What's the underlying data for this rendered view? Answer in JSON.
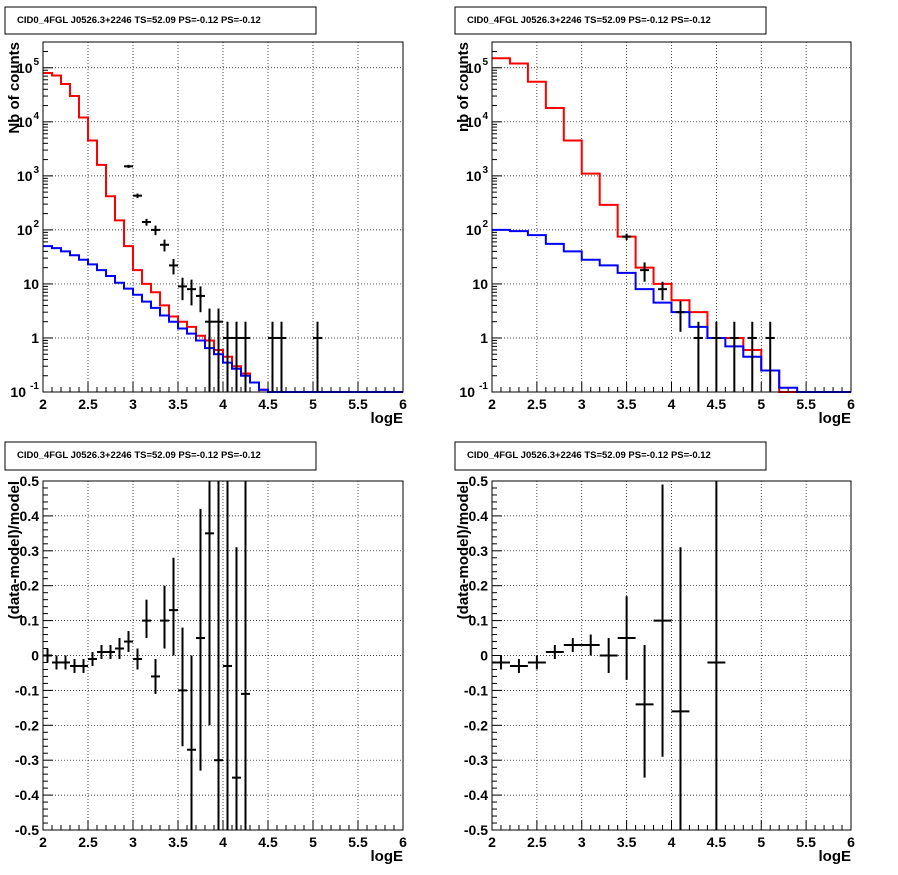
{
  "chart_data": [
    {
      "type": "line",
      "title": "CID0_4FGL J0526.3+2246 TS=52.09 PS=-0.12 PS=-0.12",
      "xlabel": "logE",
      "ylabel": "Nb of counts",
      "xlim": [
        2,
        6
      ],
      "ylim": [
        0.1,
        300000
      ],
      "yscale": "log",
      "grid": true,
      "x_ticks": [
        "2",
        "2.5",
        "3",
        "3.5",
        "4",
        "4.5",
        "5",
        "5.5",
        "6"
      ],
      "y_ticks": [
        {
          "mant": "10",
          "exp": "-1",
          "v": 0.1
        },
        {
          "mant": "1",
          "exp": "",
          "v": 1
        },
        {
          "mant": "10",
          "exp": "",
          "v": 10
        },
        {
          "mant": "10",
          "exp": "2",
          "v": 100
        },
        {
          "mant": "10",
          "exp": "3",
          "v": 1000
        },
        {
          "mant": "10",
          "exp": "4",
          "v": 10000
        },
        {
          "mant": "10",
          "exp": "5",
          "v": 100000
        }
      ],
      "bin_edges": [
        2.0,
        2.1,
        2.2,
        2.3,
        2.4,
        2.5,
        2.6,
        2.7,
        2.8,
        2.9,
        3.0,
        3.1,
        3.2,
        3.3,
        3.4,
        3.5,
        3.6,
        3.7,
        3.8,
        3.9,
        4.0,
        4.1,
        4.2,
        4.3,
        4.4,
        4.5,
        4.6,
        4.7,
        4.8,
        4.9,
        5.0,
        5.1,
        5.2,
        5.3,
        5.4,
        5.5,
        5.6,
        5.7,
        5.8,
        5.9,
        6.0
      ],
      "series": [
        {
          "color": "#ff0000",
          "kind": "step",
          "values": [
            80000,
            72000,
            50000,
            30000,
            12000,
            4500,
            1600,
            420,
            150,
            50,
            18,
            10,
            7,
            4,
            2.5,
            2,
            1.6,
            1.1,
            0.9,
            0.6,
            0.45,
            0.3,
            0.22,
            0.15,
            0.11,
            0.1,
            0.1,
            0.1,
            0.1,
            0.1,
            0.1,
            0.1,
            0.1,
            0.1,
            0.1,
            0.1,
            0.1,
            0.1,
            0.1,
            0.1
          ]
        },
        {
          "color": "#0000ff",
          "kind": "step",
          "values": [
            50,
            46,
            40,
            34,
            28,
            23,
            18,
            14,
            10.5,
            8.2,
            6.3,
            4.7,
            3.6,
            2.6,
            2.0,
            1.5,
            1.2,
            0.9,
            0.65,
            0.5,
            0.35,
            0.27,
            0.2,
            0.15,
            0.11,
            0.1,
            0.1,
            0.1,
            0.1,
            0.1,
            0.1,
            0.1,
            0.1,
            0.1,
            0.1,
            0.1,
            0.1,
            0.1,
            0.1,
            0.1
          ]
        },
        {
          "color": "#000000",
          "kind": "points",
          "x": [
            2.95,
            3.05,
            3.15,
            3.25,
            3.35,
            3.45,
            3.55,
            3.65,
            3.75,
            3.85,
            3.95,
            4.05,
            4.15,
            4.25,
            4.55,
            4.65,
            5.05
          ],
          "y": [
            1500,
            430,
            140,
            100,
            53,
            22,
            9,
            8,
            6,
            2,
            2,
            1,
            1,
            1,
            1,
            1,
            1
          ],
          "ylo": [
            1400,
            390,
            120,
            80,
            40,
            15,
            5,
            4,
            3,
            0.1,
            0.1,
            0.1,
            0.1,
            0.1,
            0.1,
            0.1,
            0.1
          ],
          "yhi": [
            1600,
            470,
            160,
            120,
            66,
            29,
            13,
            12,
            9,
            3.5,
            3.5,
            2,
            2,
            2,
            2,
            2,
            2
          ]
        }
      ]
    },
    {
      "type": "line",
      "title": "CID0_4FGL J0526.3+2246 TS=52.09 PS=-0.12 PS=-0.12",
      "xlabel": "logE",
      "ylabel": "nb of counts",
      "xlim": [
        2,
        6
      ],
      "ylim": [
        0.1,
        300000
      ],
      "yscale": "log",
      "grid": true,
      "x_ticks": [
        "2",
        "2.5",
        "3",
        "3.5",
        "4",
        "4.5",
        "5",
        "5.5",
        "6"
      ],
      "y_ticks": [
        {
          "mant": "10",
          "exp": "-1",
          "v": 0.1
        },
        {
          "mant": "1",
          "exp": "",
          "v": 1
        },
        {
          "mant": "10",
          "exp": "",
          "v": 10
        },
        {
          "mant": "10",
          "exp": "2",
          "v": 100
        },
        {
          "mant": "10",
          "exp": "3",
          "v": 1000
        },
        {
          "mant": "10",
          "exp": "4",
          "v": 10000
        },
        {
          "mant": "10",
          "exp": "5",
          "v": 100000
        }
      ],
      "bin_edges": [
        2.0,
        2.2,
        2.4,
        2.6,
        2.8,
        3.0,
        3.2,
        3.4,
        3.6,
        3.8,
        4.0,
        4.2,
        4.4,
        4.6,
        4.8,
        5.0,
        5.2,
        5.4,
        5.6,
        5.8,
        6.0
      ],
      "series": [
        {
          "color": "#ff0000",
          "kind": "step",
          "values": [
            150000,
            120000,
            55000,
            18000,
            4500,
            1100,
            290,
            75,
            20,
            10,
            5,
            3,
            1,
            1,
            0.6,
            0.25,
            0.1,
            0.1,
            0.1,
            0.1
          ]
        },
        {
          "color": "#0000ff",
          "kind": "step",
          "values": [
            100,
            95,
            80,
            55,
            40,
            28,
            22,
            16,
            8,
            4.5,
            3,
            1.6,
            1,
            0.7,
            0.45,
            0.25,
            0.12,
            0.1,
            0.1,
            0.1
          ]
        },
        {
          "color": "#000000",
          "kind": "points",
          "x": [
            3.5,
            3.7,
            3.9,
            4.1,
            4.3,
            4.5,
            4.7,
            4.9,
            5.1
          ],
          "y": [
            75,
            18,
            8,
            3,
            1,
            1,
            1,
            1,
            1
          ],
          "ylo": [
            65,
            11,
            5,
            1.3,
            0.1,
            0.1,
            0.1,
            0.1,
            0.1
          ],
          "yhi": [
            85,
            25,
            11,
            4.8,
            2,
            2,
            2,
            2,
            2
          ]
        }
      ]
    },
    {
      "type": "scatter",
      "title": "CID0_4FGL J0526.3+2246 TS=52.09 PS=-0.12 PS=-0.12",
      "xlabel": "logE",
      "ylabel": "(data-model)/model",
      "xlim": [
        2,
        6
      ],
      "ylim": [
        -0.5,
        0.5
      ],
      "grid": true,
      "x_ticks": [
        "2",
        "2.5",
        "3",
        "3.5",
        "4",
        "4.5",
        "5",
        "5.5",
        "6"
      ],
      "y_ticks": [
        "-0.5",
        "-0.4",
        "-0.3",
        "-0.2",
        "-0.1",
        "0",
        "0.1",
        "0.2",
        "0.3",
        "0.4",
        "0.5"
      ],
      "x_half_width": 0.05,
      "x": [
        2.05,
        2.15,
        2.25,
        2.35,
        2.45,
        2.55,
        2.65,
        2.75,
        2.85,
        2.95,
        3.05,
        3.15,
        3.25,
        3.35,
        3.45,
        3.55,
        3.65,
        3.75,
        3.85,
        3.95,
        4.05,
        4.15,
        4.25
      ],
      "y": [
        0.0,
        -0.02,
        -0.02,
        -0.03,
        -0.03,
        -0.01,
        0.01,
        0.01,
        0.02,
        0.04,
        -0.01,
        0.1,
        -0.06,
        0.1,
        0.13,
        -0.1,
        -0.27,
        0.05,
        0.35,
        -0.3,
        -0.03,
        -0.35,
        -0.11
      ],
      "ylo": [
        -0.02,
        -0.04,
        -0.04,
        -0.05,
        -0.05,
        -0.03,
        -0.01,
        -0.01,
        -0.01,
        0.01,
        -0.04,
        0.05,
        -0.11,
        0.02,
        0.0,
        -0.26,
        -0.55,
        -0.33,
        -0.2,
        -0.55,
        -0.55,
        -0.55,
        -0.55
      ],
      "yhi": [
        0.02,
        0.0,
        0.0,
        -0.01,
        -0.01,
        0.01,
        0.03,
        0.03,
        0.05,
        0.07,
        0.02,
        0.16,
        -0.01,
        0.2,
        0.28,
        0.08,
        0.0,
        0.42,
        0.5,
        0.5,
        0.5,
        0.31,
        0.5
      ]
    },
    {
      "type": "scatter",
      "title": "CID0_4FGL J0526.3+2246 TS=52.09 PS=-0.12 PS=-0.12",
      "xlabel": "logE",
      "ylabel": "(data-model)/model",
      "xlim": [
        2,
        6
      ],
      "ylim": [
        -0.5,
        0.5
      ],
      "grid": true,
      "x_ticks": [
        "2",
        "2.5",
        "3",
        "3.5",
        "4",
        "4.5",
        "5",
        "5.5",
        "6"
      ],
      "y_ticks": [
        "-0.5",
        "-0.4",
        "-0.3",
        "-0.2",
        "-0.1",
        "0",
        "0.1",
        "0.2",
        "0.3",
        "0.4",
        "0.5"
      ],
      "x_half_width": 0.1,
      "x": [
        2.1,
        2.3,
        2.5,
        2.7,
        2.9,
        3.1,
        3.3,
        3.5,
        3.7,
        3.9,
        4.1,
        4.5
      ],
      "y": [
        -0.02,
        -0.03,
        -0.02,
        0.01,
        0.03,
        0.03,
        0.0,
        0.05,
        -0.14,
        0.1,
        -0.16,
        -0.02
      ],
      "ylo": [
        -0.04,
        -0.05,
        -0.04,
        -0.01,
        0.01,
        0.0,
        -0.05,
        -0.07,
        -0.35,
        -0.29,
        -0.55,
        -0.55
      ],
      "yhi": [
        0.0,
        -0.01,
        0.0,
        0.03,
        0.05,
        0.06,
        0.05,
        0.17,
        0.03,
        0.49,
        0.31,
        0.5
      ]
    }
  ]
}
